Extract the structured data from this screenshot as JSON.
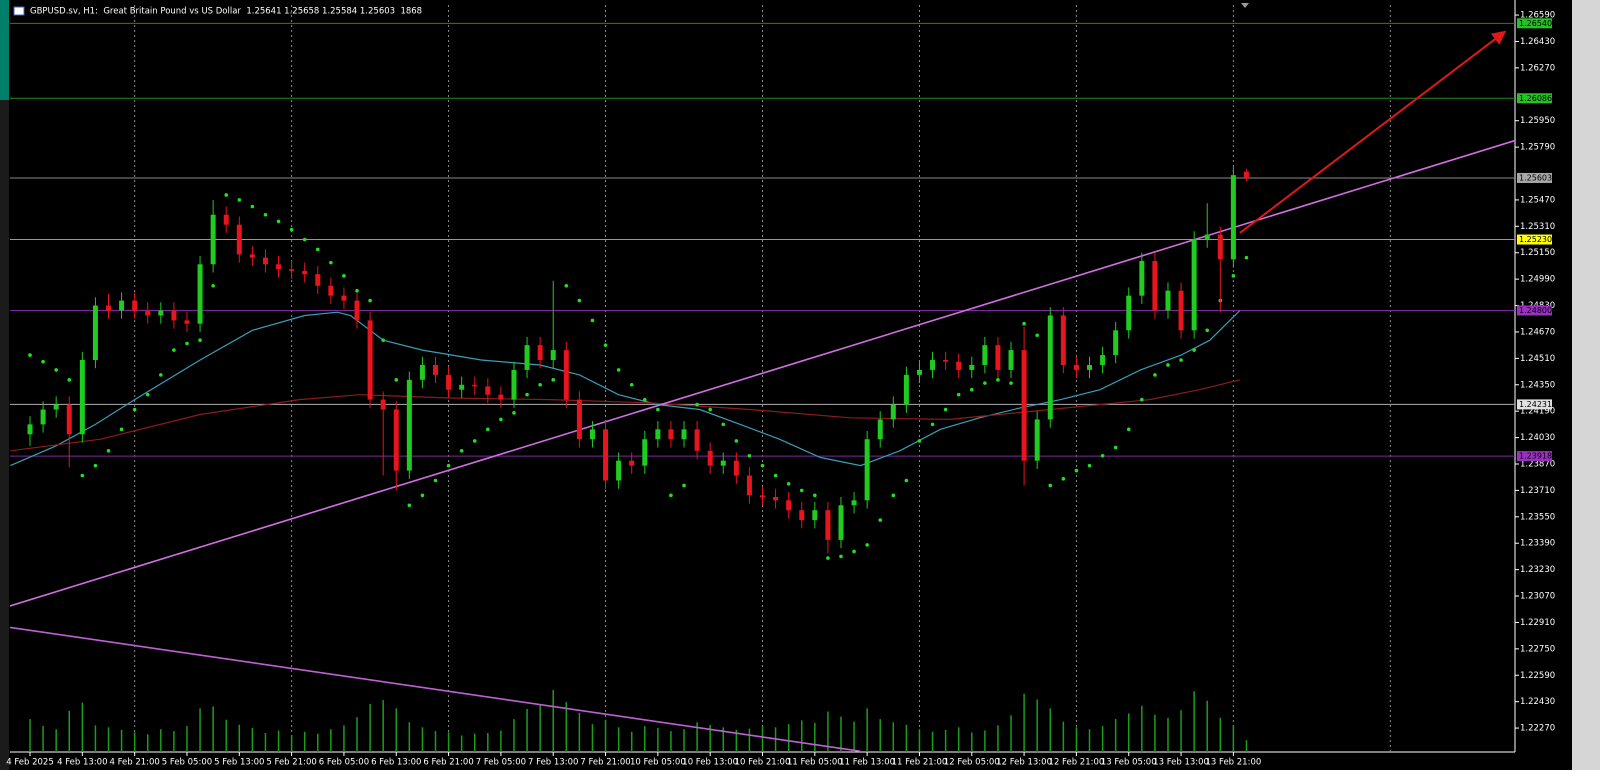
{
  "chart_data": {
    "type": "candlestick",
    "title": "GBPUSD.sv, H1:  Great Britain Pound vs US Dollar  1.25641 1.25658 1.25584 1.25603  1868",
    "up_color": "#1fcc1f",
    "down_color": "#e8141e",
    "grid": true,
    "xlim": [
      -1.53,
      113.53
    ],
    "ylim": [
      1.22125,
      1.26651
    ],
    "xticks": [
      {
        "value": 0,
        "label": "4 Feb 2025"
      },
      {
        "value": 4,
        "label": "4 Feb 13:00"
      },
      {
        "value": 8,
        "label": "4 Feb 21:00"
      },
      {
        "value": 12,
        "label": "5 Feb 05:00"
      },
      {
        "value": 16,
        "label": "5 Feb 13:00"
      },
      {
        "value": 20,
        "label": "5 Feb 21:00"
      },
      {
        "value": 24,
        "label": "6 Feb 05:00"
      },
      {
        "value": 28,
        "label": "6 Feb 13:00"
      },
      {
        "value": 32,
        "label": "6 Feb 21:00"
      },
      {
        "value": 36,
        "label": "7 Feb 05:00"
      },
      {
        "value": 40,
        "label": "7 Feb 13:00"
      },
      {
        "value": 44,
        "label": "7 Feb 21:00"
      },
      {
        "value": 48,
        "label": "10 Feb 05:00"
      },
      {
        "value": 52,
        "label": "10 Feb 13:00"
      },
      {
        "value": 56,
        "label": "10 Feb 21:00"
      },
      {
        "value": 60,
        "label": "11 Feb 05:00"
      },
      {
        "value": 64,
        "label": "11 Feb 13:00"
      },
      {
        "value": 68,
        "label": "11 Feb 21:00"
      },
      {
        "value": 72,
        "label": "12 Feb 05:00"
      },
      {
        "value": 76,
        "label": "12 Feb 13:00"
      },
      {
        "value": 80,
        "label": "12 Feb 21:00"
      },
      {
        "value": 84,
        "label": "13 Feb 05:00"
      },
      {
        "value": 88,
        "label": "13 Feb 13:00"
      },
      {
        "value": 92,
        "label": "13 Feb 21:00"
      }
    ],
    "yticks": [
      {
        "value": 1.2659,
        "label": "1.26590"
      },
      {
        "value": 1.2643,
        "label": "1.26430"
      },
      {
        "value": 1.2627,
        "label": "1.26270"
      },
      {
        "value": 1.2595,
        "label": "1.25950"
      },
      {
        "value": 1.2579,
        "label": "1.25790"
      },
      {
        "value": 1.2547,
        "label": "1.25470"
      },
      {
        "value": 1.2531,
        "label": "1.25310"
      },
      {
        "value": 1.2515,
        "label": "1.25150"
      },
      {
        "value": 1.2499,
        "label": "1.24990"
      },
      {
        "value": 1.2483,
        "label": "1.24830"
      },
      {
        "value": 1.2467,
        "label": "1.24670"
      },
      {
        "value": 1.2451,
        "label": "1.24510"
      },
      {
        "value": 1.2435,
        "label": "1.24350"
      },
      {
        "value": 1.2419,
        "label": "1.24190"
      },
      {
        "value": 1.2403,
        "label": "1.24030"
      },
      {
        "value": 1.2387,
        "label": "1.23870"
      },
      {
        "value": 1.2371,
        "label": "1.23710"
      },
      {
        "value": 1.2355,
        "label": "1.23550"
      },
      {
        "value": 1.2339,
        "label": "1.23390"
      },
      {
        "value": 1.2323,
        "label": "1.23230"
      },
      {
        "value": 1.2307,
        "label": "1.23070"
      },
      {
        "value": 1.2291,
        "label": "1.22910"
      },
      {
        "value": 1.2275,
        "label": "1.22750"
      },
      {
        "value": 1.2259,
        "label": "1.22590"
      },
      {
        "value": 1.2243,
        "label": "1.22430"
      },
      {
        "value": 1.2227,
        "label": "1.22270"
      }
    ],
    "candles": [
      [
        1.2405,
        1.2416,
        1.2398,
        1.2411
      ],
      [
        1.2411,
        1.2425,
        1.2406,
        1.242
      ],
      [
        1.242,
        1.2428,
        1.2415,
        1.2423
      ],
      [
        1.2423,
        1.2428,
        1.2385,
        1.2405
      ],
      [
        1.2405,
        1.2455,
        1.24,
        1.245
      ],
      [
        1.245,
        1.2488,
        1.2445,
        1.2483
      ],
      [
        1.2483,
        1.249,
        1.2475,
        1.248
      ],
      [
        1.248,
        1.2491,
        1.2475,
        1.2486
      ],
      [
        1.2486,
        1.2491,
        1.2475,
        1.248
      ],
      [
        1.248,
        1.2485,
        1.2472,
        1.2477
      ],
      [
        1.2477,
        1.2485,
        1.2472,
        1.248
      ],
      [
        1.248,
        1.2485,
        1.2469,
        1.2474
      ],
      [
        1.2474,
        1.2479,
        1.2467,
        1.2472
      ],
      [
        1.2472,
        1.2513,
        1.2467,
        1.2508
      ],
      [
        1.2508,
        1.2547,
        1.2503,
        1.2538
      ],
      [
        1.2538,
        1.2543,
        1.2527,
        1.2532
      ],
      [
        1.2532,
        1.2537,
        1.2509,
        1.2514
      ],
      [
        1.2514,
        1.2519,
        1.2507,
        1.2512
      ],
      [
        1.2512,
        1.2517,
        1.2503,
        1.2508
      ],
      [
        1.2508,
        1.2513,
        1.25,
        1.2505
      ],
      [
        1.2505,
        1.251,
        1.2499,
        1.2504
      ],
      [
        1.2504,
        1.2509,
        1.2497,
        1.2502
      ],
      [
        1.2502,
        1.2507,
        1.249,
        1.2495
      ],
      [
        1.2495,
        1.25,
        1.2484,
        1.2489
      ],
      [
        1.2489,
        1.2494,
        1.2481,
        1.2486
      ],
      [
        1.2486,
        1.2491,
        1.2469,
        1.2474
      ],
      [
        1.2474,
        1.2479,
        1.2421,
        1.2426
      ],
      [
        1.2426,
        1.2431,
        1.238,
        1.242
      ],
      [
        1.242,
        1.2425,
        1.2371,
        1.2383
      ],
      [
        1.2383,
        1.2443,
        1.2378,
        1.2438
      ],
      [
        1.2438,
        1.2452,
        1.2433,
        1.2447
      ],
      [
        1.2447,
        1.2452,
        1.2436,
        1.2441
      ],
      [
        1.2441,
        1.2446,
        1.2427,
        1.2432
      ],
      [
        1.2432,
        1.244,
        1.2427,
        1.2435
      ],
      [
        1.2435,
        1.244,
        1.2429,
        1.2434
      ],
      [
        1.2434,
        1.2439,
        1.2424,
        1.2429
      ],
      [
        1.2429,
        1.2434,
        1.2421,
        1.2426
      ],
      [
        1.2426,
        1.2449,
        1.2421,
        1.2444
      ],
      [
        1.2444,
        1.2464,
        1.2439,
        1.2459
      ],
      [
        1.2459,
        1.2464,
        1.2445,
        1.245
      ],
      [
        1.245,
        1.2498,
        1.2445,
        1.2456
      ],
      [
        1.2456,
        1.2461,
        1.2421,
        1.2426
      ],
      [
        1.2426,
        1.2431,
        1.2397,
        1.2402
      ],
      [
        1.2402,
        1.2413,
        1.2397,
        1.2408
      ],
      [
        1.2408,
        1.2413,
        1.2372,
        1.2377
      ],
      [
        1.2377,
        1.2394,
        1.2372,
        1.2389
      ],
      [
        1.2389,
        1.2394,
        1.2381,
        1.2386
      ],
      [
        1.2386,
        1.2407,
        1.2381,
        1.2402
      ],
      [
        1.2402,
        1.2413,
        1.2397,
        1.2408
      ],
      [
        1.2408,
        1.2413,
        1.2397,
        1.2402
      ],
      [
        1.2402,
        1.2413,
        1.2397,
        1.2408
      ],
      [
        1.2408,
        1.2413,
        1.239,
        1.2395
      ],
      [
        1.2395,
        1.24,
        1.2381,
        1.2386
      ],
      [
        1.2386,
        1.2394,
        1.2381,
        1.2389
      ],
      [
        1.2389,
        1.2394,
        1.2375,
        1.238
      ],
      [
        1.238,
        1.2385,
        1.2363,
        1.2368
      ],
      [
        1.2368,
        1.2373,
        1.2362,
        1.2367
      ],
      [
        1.2367,
        1.2372,
        1.236,
        1.2365
      ],
      [
        1.2365,
        1.237,
        1.2354,
        1.2359
      ],
      [
        1.2359,
        1.2364,
        1.2348,
        1.2353
      ],
      [
        1.2353,
        1.2364,
        1.2348,
        1.2359
      ],
      [
        1.2359,
        1.2364,
        1.2333,
        1.2341
      ],
      [
        1.2341,
        1.2367,
        1.2336,
        1.2362
      ],
      [
        1.2362,
        1.237,
        1.2357,
        1.2365
      ],
      [
        1.2365,
        1.2407,
        1.236,
        1.2402
      ],
      [
        1.2402,
        1.2419,
        1.2397,
        1.2414
      ],
      [
        1.2414,
        1.2428,
        1.2409,
        1.2423
      ],
      [
        1.2423,
        1.2446,
        1.2418,
        1.2441
      ],
      [
        1.2441,
        1.2449,
        1.2436,
        1.2444
      ],
      [
        1.2444,
        1.2455,
        1.2439,
        1.245
      ],
      [
        1.245,
        1.2455,
        1.2444,
        1.2449
      ],
      [
        1.2449,
        1.2454,
        1.2439,
        1.2444
      ],
      [
        1.2444,
        1.2452,
        1.2439,
        1.2447
      ],
      [
        1.2447,
        1.2464,
        1.2442,
        1.2459
      ],
      [
        1.2459,
        1.2464,
        1.2439,
        1.2444
      ],
      [
        1.2444,
        1.2461,
        1.2439,
        1.2456
      ],
      [
        1.2456,
        1.247,
        1.2374,
        1.2389
      ],
      [
        1.2389,
        1.2419,
        1.2384,
        1.2414
      ],
      [
        1.2414,
        1.2482,
        1.2409,
        1.2477
      ],
      [
        1.2477,
        1.2482,
        1.2442,
        1.2447
      ],
      [
        1.2447,
        1.2452,
        1.2439,
        1.2444
      ],
      [
        1.2444,
        1.2452,
        1.2439,
        1.2447
      ],
      [
        1.2447,
        1.2458,
        1.2442,
        1.2453
      ],
      [
        1.2453,
        1.2473,
        1.2448,
        1.2468
      ],
      [
        1.2468,
        1.2494,
        1.2463,
        1.2489
      ],
      [
        1.2489,
        1.2515,
        1.2484,
        1.251
      ],
      [
        1.251,
        1.2515,
        1.2475,
        1.248
      ],
      [
        1.248,
        1.2497,
        1.2475,
        1.2492
      ],
      [
        1.2492,
        1.2497,
        1.2463,
        1.2468
      ],
      [
        1.2468,
        1.2528,
        1.2463,
        1.2523
      ],
      [
        1.2523,
        1.2545,
        1.2518,
        1.2526
      ],
      [
        1.2526,
        1.2531,
        1.2479,
        1.2511
      ],
      [
        1.2511,
        1.2567,
        1.2506,
        1.2562
      ],
      [
        1.25641,
        1.25658,
        1.25584,
        1.25603
      ]
    ],
    "volumes": {
      "color": "#1a9e1a",
      "values": [
        5200,
        4100,
        3600,
        6500,
        7800,
        4200,
        3900,
        3500,
        3100,
        2800,
        3600,
        3300,
        4100,
        6900,
        7200,
        5100,
        4300,
        3800,
        3000,
        3400,
        2700,
        3200,
        2900,
        3600,
        4200,
        5500,
        7600,
        8200,
        6900,
        4700,
        3900,
        3300,
        3100,
        2600,
        2900,
        3000,
        3400,
        5200,
        6800,
        7400,
        9800,
        7900,
        6200,
        4400,
        5100,
        3900,
        3200,
        4100,
        3800,
        3300,
        3600,
        4700,
        4300,
        3900,
        3500,
        3700,
        4100,
        3900,
        4400,
        5000,
        4600,
        6400,
        5600,
        4800,
        6900,
        5200,
        4700,
        4300,
        3600,
        3200,
        3500,
        3900,
        3100,
        3400,
        4200,
        5800,
        9200,
        8300,
        6900,
        4800,
        3900,
        3600,
        4100,
        5200,
        6100,
        7300,
        5900,
        5400,
        6600,
        9600,
        8100,
        5400,
        4200,
        1868
      ]
    },
    "sar": {
      "color": "#22e022",
      "values": [
        1.2453,
        1.2449,
        1.2444,
        1.2438,
        1.238,
        1.2386,
        1.2395,
        1.2408,
        1.242,
        1.2429,
        1.2441,
        1.2456,
        1.246,
        1.2462,
        1.2495,
        1.255,
        1.2547,
        1.2543,
        1.2538,
        1.2534,
        1.2529,
        1.2523,
        1.2517,
        1.2509,
        1.2501,
        1.2492,
        1.2486,
        1.2462,
        1.2438,
        1.2362,
        1.2368,
        1.2377,
        1.2386,
        1.2395,
        1.2401,
        1.2408,
        1.2414,
        1.2418,
        1.2429,
        1.2435,
        1.2438,
        1.2495,
        1.2486,
        1.2474,
        1.2459,
        1.2444,
        1.2435,
        1.2426,
        1.242,
        1.2368,
        1.2374,
        1.2423,
        1.242,
        1.2411,
        1.2401,
        1.2392,
        1.2386,
        1.238,
        1.2375,
        1.2371,
        1.2368,
        1.233,
        1.2331,
        1.2334,
        1.2338,
        1.2353,
        1.2368,
        1.2377,
        1.2401,
        1.2411,
        1.242,
        1.2429,
        1.2432,
        1.2436,
        1.2438,
        1.2436,
        1.2472,
        1.2465,
        1.2374,
        1.2378,
        1.2383,
        1.2386,
        1.2392,
        1.2397,
        1.2408,
        1.2426,
        1.2441,
        1.2447,
        1.245,
        1.2456,
        1.2468,
        1.2486,
        1.2501,
        1.2512
      ]
    },
    "moving_averages": [
      {
        "color": "#3a9fb8",
        "x": [
          -1.5,
          2,
          5,
          8,
          13,
          17,
          21,
          23.5,
          24.5,
          27,
          30,
          34.5,
          39,
          42,
          45,
          48,
          51.2,
          54.3,
          57.3,
          60.4,
          63.5,
          66.5,
          69.6,
          72.6,
          75.7,
          78.8,
          81.8,
          84.9,
          88,
          90.2,
          92.5
        ],
        "values": [
          1.2386,
          1.2398,
          1.2411,
          1.2426,
          1.245,
          1.2468,
          1.2477,
          1.2479,
          1.2477,
          1.2462,
          1.2456,
          1.245,
          1.2447,
          1.2441,
          1.2429,
          1.2423,
          1.242,
          1.2411,
          1.2402,
          1.2391,
          1.2386,
          1.2395,
          1.2408,
          1.2415,
          1.2421,
          1.2426,
          1.2432,
          1.2444,
          1.2453,
          1.2462,
          1.248
        ]
      },
      {
        "color": "#8c1c1c",
        "x": [
          -1.5,
          5.4,
          13,
          20.6,
          25.2,
          32.1,
          39.8,
          47.4,
          55,
          62.7,
          70.3,
          78,
          85.6,
          89.4,
          92.5
        ],
        "values": [
          1.2395,
          1.2402,
          1.2417,
          1.2426,
          1.2429,
          1.2427,
          1.2426,
          1.2424,
          1.242,
          1.2415,
          1.2414,
          1.242,
          1.2426,
          1.2432,
          1.2438
        ]
      }
    ],
    "trendlines": [
      {
        "color": "#d070e0",
        "x": [
          -1.53,
          113.53
        ],
        "values": [
          1.2301,
          1.2583
        ],
        "arrow": false
      },
      {
        "color": "#c060d8",
        "x": [
          -1.53,
          63.46
        ],
        "values": [
          1.2288,
          1.2213
        ],
        "arrow": false
      },
      {
        "color": "#e01818",
        "x": [
          92.5,
          112.77
        ],
        "values": [
          1.2527,
          1.2649
        ],
        "arrow": true
      }
    ],
    "levels": [
      {
        "value": 1.2654,
        "label": "1.26540",
        "color": "#1e8c1e",
        "label_bg": "#22c322"
      },
      {
        "value": 1.26086,
        "label": "1.26086",
        "color": "#1e8c1e",
        "label_bg": "#22c322"
      },
      {
        "value": 1.25603,
        "label": "1.25603",
        "color": "#8a8a8a",
        "label_bg": "#a8a8a8"
      },
      {
        "value": 1.2523,
        "label": "1.25230",
        "color": "#b8a020",
        "label_bg": "#ffff00"
      },
      {
        "value": 1.248,
        "label": "1.24800",
        "color": "#7a2a9a",
        "label_bg": "#9a30c0"
      },
      {
        "value": 1.24231,
        "label": "1.24231",
        "color": "#b0b0b0",
        "label_bg": "#e0e0e0"
      },
      {
        "value": 1.23918,
        "label": "1.23918",
        "color": "#7a2a9a",
        "label_bg": "#9a30c0"
      }
    ]
  }
}
